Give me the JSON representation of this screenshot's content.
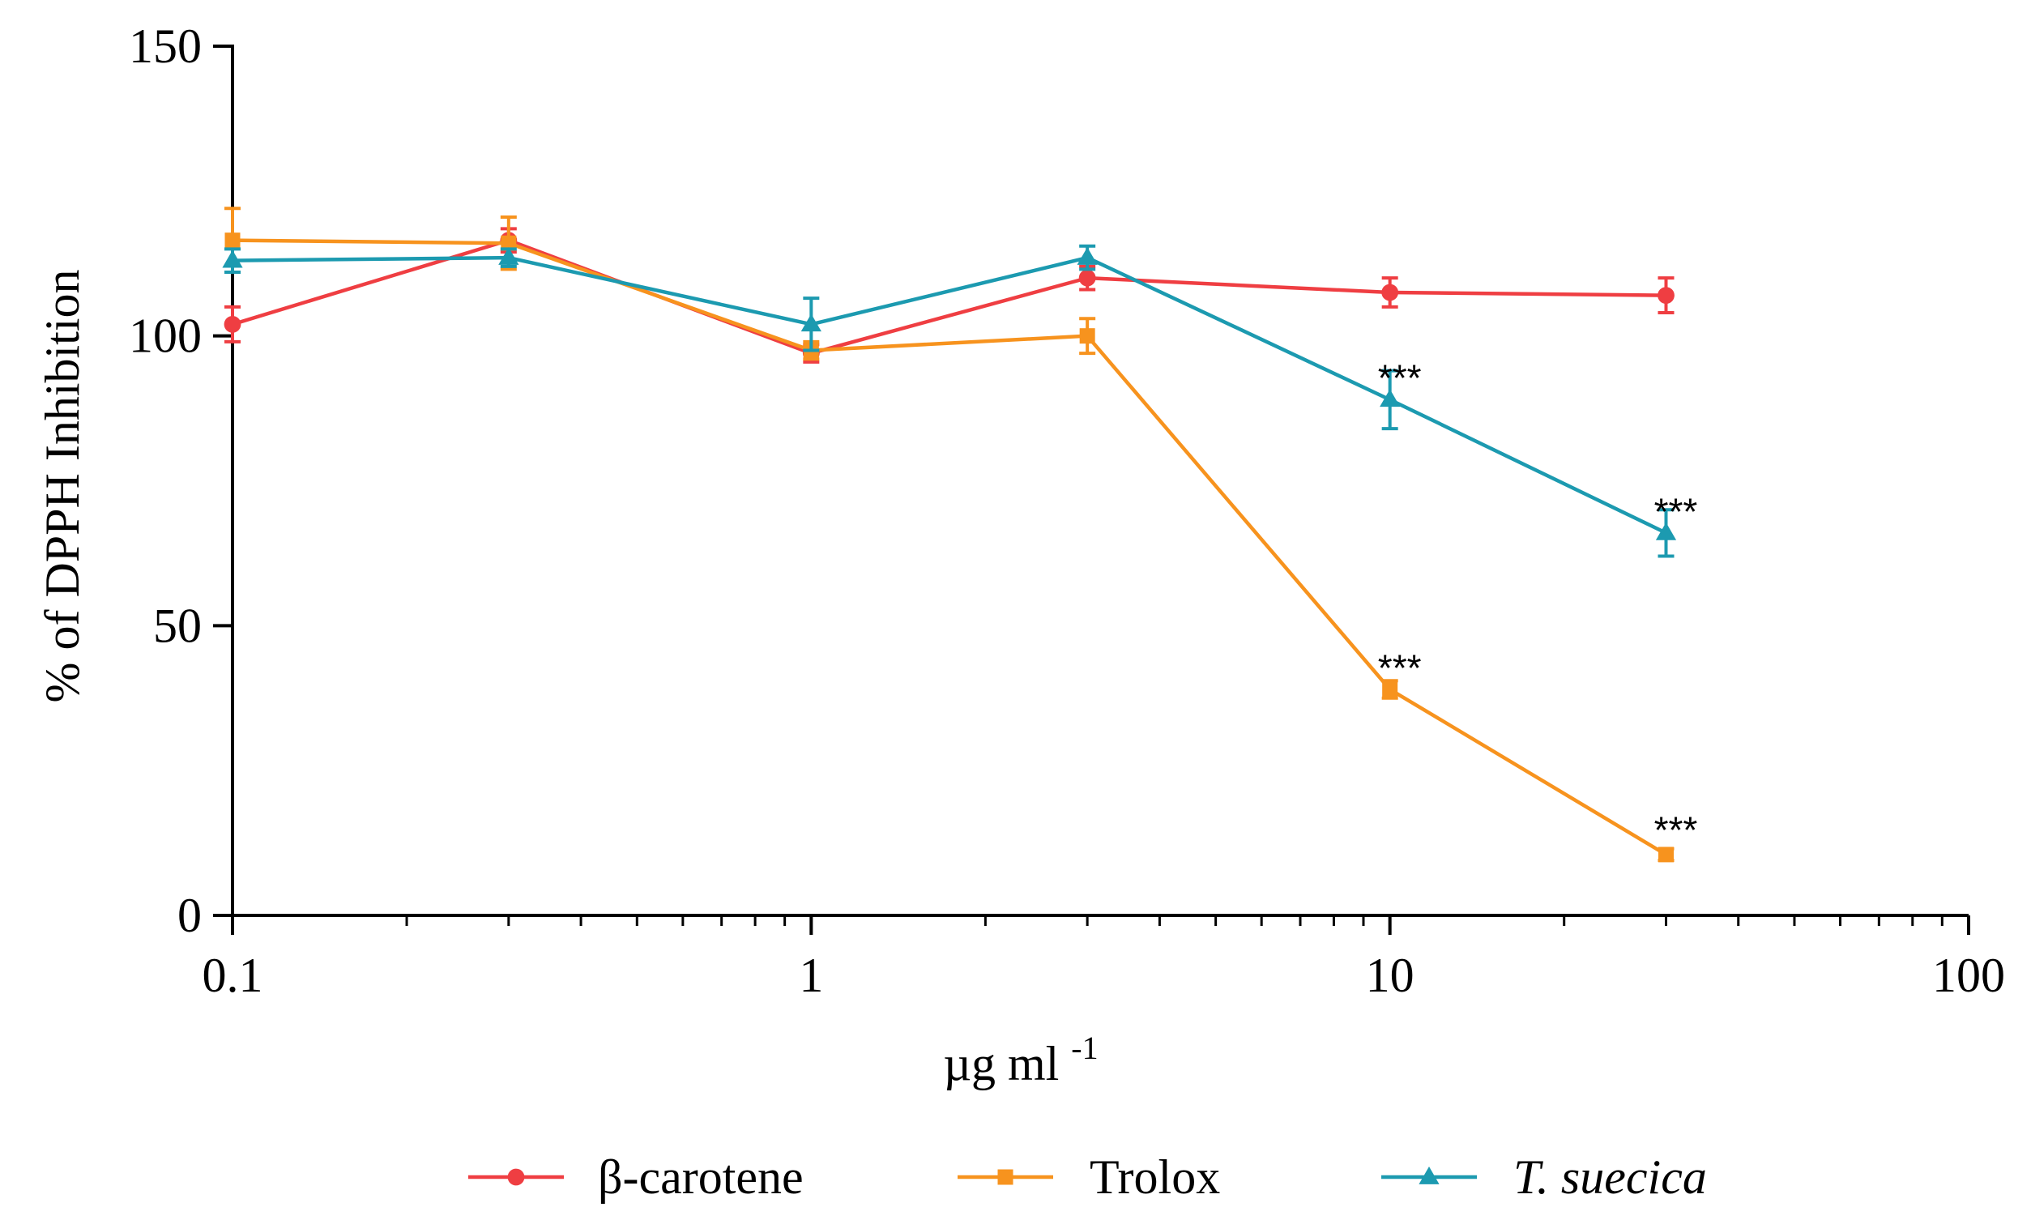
{
  "chart_data": {
    "type": "line",
    "x_scale": "log",
    "xlim": [
      0.1,
      100
    ],
    "ylim": [
      0,
      150
    ],
    "x_ticks": [
      "0.1",
      "1",
      "10",
      "100"
    ],
    "y_ticks": [
      "0",
      "50",
      "100",
      "150"
    ],
    "xlabel_main": "µg ml",
    "xlabel_sup": "-1",
    "ylabel": "% of DPPH Inhibition",
    "x": [
      0.1,
      0.3,
      1,
      3,
      10,
      30
    ],
    "series": [
      {
        "name": "β-carotene",
        "italic": false,
        "color": "#ef3e42",
        "marker": "circle",
        "values": [
          102,
          116.5,
          97,
          110,
          107.5,
          107
        ],
        "errors": [
          3,
          2,
          1.5,
          2,
          2.5,
          3
        ]
      },
      {
        "name": "Trolox",
        "italic": false,
        "color": "#f7931e",
        "marker": "square",
        "values": [
          116.5,
          116,
          97.5,
          100,
          39,
          10.5
        ],
        "errors": [
          5.5,
          4.5,
          1.5,
          3,
          1.5,
          1
        ]
      },
      {
        "name": "T. suecica",
        "italic": true,
        "color": "#1c9ab0",
        "marker": "triangle",
        "values": [
          113,
          113.5,
          102,
          113.5,
          89,
          66
        ],
        "errors": [
          2,
          1.5,
          4.5,
          2,
          5,
          4
        ]
      }
    ],
    "annotations": [
      {
        "text": "***",
        "x": 10,
        "y": 93
      },
      {
        "text": "***",
        "x": 30,
        "y": 70
      },
      {
        "text": "***",
        "x": 10,
        "y": 43
      },
      {
        "text": "***",
        "x": 30,
        "y": 15
      }
    ],
    "legend_position": "bottom"
  }
}
